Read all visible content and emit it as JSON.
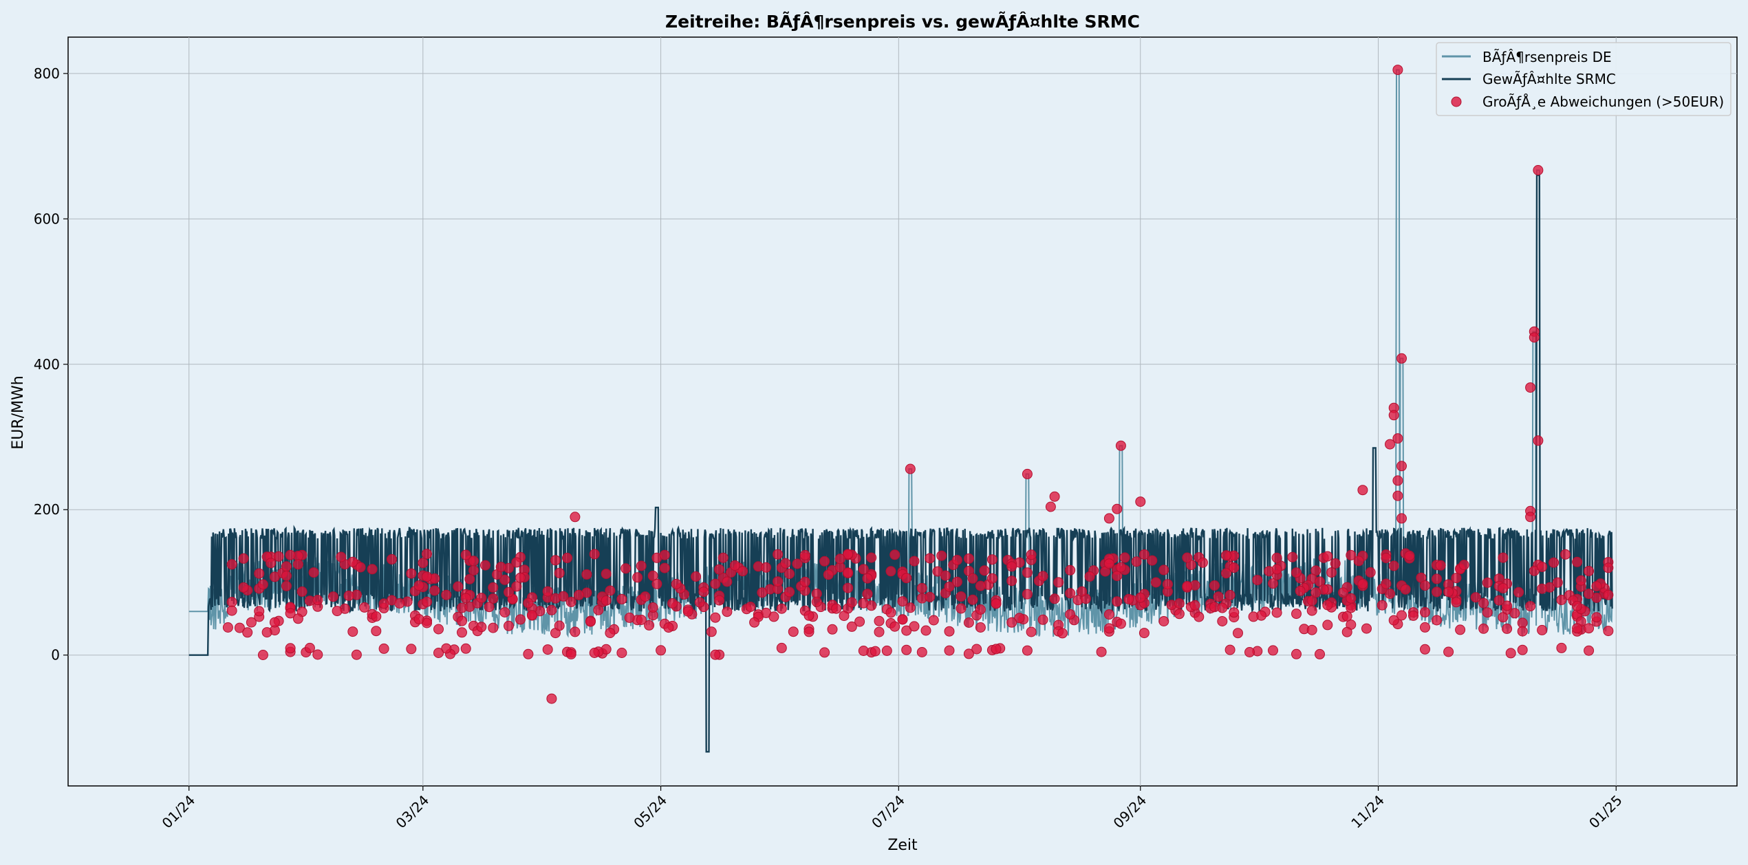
{
  "chart_data": {
    "type": "line",
    "title": "Zeitreihe: BÃƒÂ¶rsenpreis vs. gewÃƒÂ¤hlte SRMC",
    "xlabel": "Zeit",
    "ylabel": "EUR/MWh",
    "x_tick_labels": [
      "01/24",
      "03/24",
      "05/24",
      "07/24",
      "09/24",
      "11/24",
      "01/25"
    ],
    "y_tick_labels": [
      "0",
      "200",
      "400",
      "600",
      "800"
    ],
    "xlim": [
      "2023-12-01",
      "2025-02-01"
    ],
    "ylim": [
      -180,
      850
    ],
    "grid": true,
    "legend_position": "top-right",
    "colors": {
      "background": "#e6f0f7",
      "boersenpreis": "#5f94a8",
      "srmc": "#163f55",
      "deviation": "#dc143c",
      "grid": "#b0b8bf"
    },
    "series": [
      {
        "name": "BÃƒÂ¶rsenpreis DE",
        "color": "#5f94a8",
        "description_values": "daily/hourly exchange price, mostly 0–130 EUR/MWh, spikes in Nov/Dec 2024",
        "spikes": [
          {
            "x": "2024-11-06",
            "y": 805
          },
          {
            "x": "2024-11-07",
            "y": 408
          },
          {
            "x": "2024-12-12",
            "y": 667
          },
          {
            "x": "2024-12-11",
            "y": 445
          },
          {
            "x": "2024-07-04",
            "y": 256
          },
          {
            "x": "2024-08-03",
            "y": 249
          },
          {
            "x": "2024-08-27",
            "y": 288
          }
        ]
      },
      {
        "name": "GewÃƒÂ¤hlte SRMC",
        "color": "#163f55",
        "typical_low": 60,
        "typical_high": 175,
        "spikes": [
          {
            "x": "2024-04-30",
            "y": 203
          },
          {
            "x": "2024-05-13",
            "y": -133
          },
          {
            "x": "2024-10-31",
            "y": 285
          },
          {
            "x": "2024-12-12",
            "y": 660
          }
        ]
      },
      {
        "name": "GroÃƒÅ¸e Abweichungen (>50EUR)",
        "color": "#dc143c",
        "type": "scatter",
        "highlighted_points": [
          {
            "x": "2024-11-06",
            "y": 805
          },
          {
            "x": "2024-12-12",
            "y": 667
          },
          {
            "x": "2024-12-11",
            "y": 445
          },
          {
            "x": "2024-12-11",
            "y": 437
          },
          {
            "x": "2024-11-07",
            "y": 408
          },
          {
            "x": "2024-12-10",
            "y": 368
          },
          {
            "x": "2024-11-05",
            "y": 340
          },
          {
            "x": "2024-11-05",
            "y": 330
          },
          {
            "x": "2024-11-06",
            "y": 298
          },
          {
            "x": "2024-12-12",
            "y": 295
          },
          {
            "x": "2024-11-04",
            "y": 290
          },
          {
            "x": "2024-08-27",
            "y": 288
          },
          {
            "x": "2024-11-07",
            "y": 260
          },
          {
            "x": "2024-07-04",
            "y": 256
          },
          {
            "x": "2024-08-03",
            "y": 249
          },
          {
            "x": "2024-11-06",
            "y": 240
          },
          {
            "x": "2024-10-28",
            "y": 227
          },
          {
            "x": "2024-11-06",
            "y": 219
          },
          {
            "x": "2024-08-10",
            "y": 218
          },
          {
            "x": "2024-09-01",
            "y": 211
          },
          {
            "x": "2024-08-09",
            "y": 204
          },
          {
            "x": "2024-08-26",
            "y": 201
          },
          {
            "x": "2024-12-10",
            "y": 198
          },
          {
            "x": "2024-04-09",
            "y": 190
          },
          {
            "x": "2024-12-10",
            "y": 190
          },
          {
            "x": "2024-11-07",
            "y": 188
          },
          {
            "x": "2024-08-24",
            "y": 188
          },
          {
            "x": "2024-04-03",
            "y": -60
          }
        ]
      }
    ]
  }
}
